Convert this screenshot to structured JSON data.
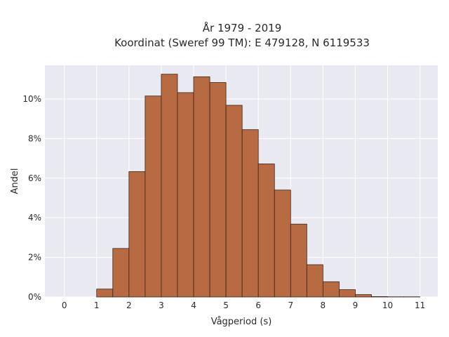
{
  "chart_data": {
    "type": "bar",
    "title_lines": [
      "År 1979 - 2019",
      "Koordinat (Sweref 99 TM): E 479128, N 6119533"
    ],
    "xlabel": "Vågperiod (s)",
    "ylabel": "Andel",
    "bin_width": 0.5,
    "x": [
      0,
      0.5,
      1,
      1.5,
      2,
      2.5,
      3,
      3.5,
      4,
      4.5,
      5,
      5.5,
      6,
      6.5,
      7,
      7.5,
      8,
      8.5,
      9,
      9.5,
      10,
      10.5
    ],
    "values": [
      0.0,
      0.0,
      0.4,
      2.45,
      6.33,
      10.15,
      11.25,
      10.32,
      11.12,
      10.83,
      9.68,
      8.45,
      6.72,
      5.4,
      3.68,
      1.63,
      0.77,
      0.37,
      0.12,
      0.02,
      0.01,
      0.01
    ],
    "xlim": [
      -0.6,
      11.55
    ],
    "ylim": [
      0,
      11.7
    ],
    "xticks": [
      0,
      1,
      2,
      3,
      4,
      5,
      6,
      7,
      8,
      9,
      10,
      11
    ],
    "yticks": [
      0,
      2,
      4,
      6,
      8,
      10
    ],
    "ytick_labels": [
      "0%",
      "2%",
      "4%",
      "6%",
      "8%",
      "10%"
    ],
    "grid": true,
    "colors": {
      "bar_fill": "#b86b43",
      "bar_edge": "#3a2418",
      "plot_background": "#e9e9f1",
      "grid": "#ffffff"
    }
  }
}
